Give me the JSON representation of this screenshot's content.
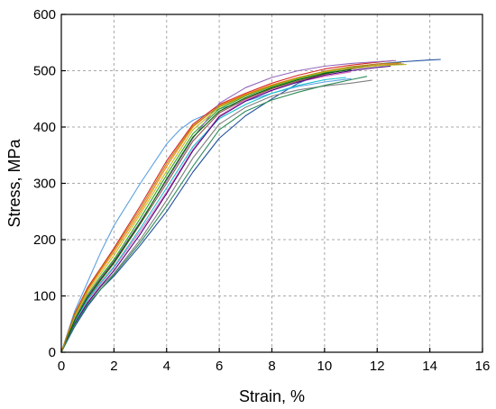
{
  "chart_data": {
    "type": "line",
    "title": "",
    "xlabel": "Strain, %",
    "ylabel": "Stress, MPa",
    "xlim": [
      0,
      16
    ],
    "ylim": [
      0,
      600
    ],
    "xticks": [
      0,
      2,
      4,
      6,
      8,
      10,
      12,
      14,
      16
    ],
    "yticks": [
      0,
      100,
      200,
      300,
      400,
      500,
      600
    ],
    "x_tick_labels": [
      "0",
      "2",
      "4",
      "6",
      "8",
      "10",
      "12",
      "14",
      "16"
    ],
    "y_tick_labels": [
      "0",
      "100",
      "200",
      "300",
      "400",
      "500",
      "600"
    ],
    "grid": true,
    "legend": "none",
    "series": [
      {
        "color": "#1f4e9c",
        "points": [
          [
            0,
            0
          ],
          [
            0.5,
            45
          ],
          [
            1,
            82
          ],
          [
            1.5,
            112
          ],
          [
            2,
            135
          ],
          [
            3,
            190
          ],
          [
            4,
            250
          ],
          [
            5,
            320
          ],
          [
            6,
            380
          ],
          [
            7,
            420
          ],
          [
            8,
            450
          ],
          [
            9,
            478
          ],
          [
            10,
            496
          ],
          [
            11,
            506
          ],
          [
            12,
            512
          ],
          [
            13,
            516
          ],
          [
            14,
            519
          ],
          [
            14.4,
            520
          ]
        ]
      },
      {
        "color": "#5da0e0",
        "points": [
          [
            0,
            0
          ],
          [
            0.5,
            72
          ],
          [
            1,
            125
          ],
          [
            1.5,
            178
          ],
          [
            2,
            225
          ],
          [
            3,
            300
          ],
          [
            4,
            370
          ],
          [
            4.5,
            395
          ],
          [
            5,
            412
          ],
          [
            6,
            432
          ],
          [
            7,
            446
          ],
          [
            8,
            460
          ],
          [
            9,
            472
          ],
          [
            10,
            480
          ],
          [
            11,
            486
          ]
        ]
      },
      {
        "color": "#d62728",
        "points": [
          [
            0,
            0
          ],
          [
            0.5,
            68
          ],
          [
            1,
            115
          ],
          [
            1.5,
            150
          ],
          [
            2,
            185
          ],
          [
            3,
            260
          ],
          [
            4,
            340
          ],
          [
            5,
            405
          ],
          [
            6,
            440
          ],
          [
            7,
            460
          ],
          [
            8,
            478
          ],
          [
            9,
            492
          ],
          [
            10,
            503
          ],
          [
            11,
            510
          ],
          [
            12,
            515
          ],
          [
            12.6,
            518
          ]
        ]
      },
      {
        "color": "#ff7f0e",
        "points": [
          [
            0,
            0
          ],
          [
            0.5,
            65
          ],
          [
            1,
            110
          ],
          [
            1.5,
            145
          ],
          [
            2,
            178
          ],
          [
            3,
            250
          ],
          [
            4,
            330
          ],
          [
            5,
            400
          ],
          [
            6,
            438
          ],
          [
            7,
            458
          ],
          [
            8,
            475
          ],
          [
            9,
            488
          ],
          [
            10,
            498
          ],
          [
            11,
            505
          ],
          [
            12,
            510
          ],
          [
            12.8,
            512
          ]
        ]
      },
      {
        "color": "#2ca02c",
        "points": [
          [
            0,
            0
          ],
          [
            0.5,
            60
          ],
          [
            1,
            102
          ],
          [
            1.5,
            135
          ],
          [
            2,
            165
          ],
          [
            3,
            238
          ],
          [
            4,
            315
          ],
          [
            5,
            388
          ],
          [
            6,
            432
          ],
          [
            7,
            455
          ],
          [
            8,
            472
          ],
          [
            9,
            486
          ],
          [
            10,
            497
          ],
          [
            11,
            505
          ],
          [
            12,
            509
          ],
          [
            12.4,
            510
          ]
        ]
      },
      {
        "color": "#9467bd",
        "points": [
          [
            0,
            0
          ],
          [
            0.5,
            58
          ],
          [
            1,
            100
          ],
          [
            1.5,
            132
          ],
          [
            2,
            162
          ],
          [
            3,
            232
          ],
          [
            4,
            305
          ],
          [
            5,
            380
          ],
          [
            6,
            442
          ],
          [
            7,
            470
          ],
          [
            8,
            488
          ],
          [
            9,
            500
          ],
          [
            10,
            508
          ],
          [
            11,
            513
          ],
          [
            12,
            516
          ],
          [
            12.7,
            518
          ]
        ]
      },
      {
        "color": "#8c564b",
        "points": [
          [
            0,
            0
          ],
          [
            0.5,
            55
          ],
          [
            1,
            96
          ],
          [
            1.5,
            128
          ],
          [
            2,
            158
          ],
          [
            3,
            228
          ],
          [
            4,
            300
          ],
          [
            5,
            375
          ],
          [
            6,
            425
          ],
          [
            7,
            450
          ],
          [
            8,
            468
          ],
          [
            9,
            482
          ],
          [
            10,
            494
          ],
          [
            11,
            503
          ],
          [
            12,
            509
          ],
          [
            13,
            512
          ]
        ]
      },
      {
        "color": "#e377c2",
        "points": [
          [
            0,
            0
          ],
          [
            0.5,
            52
          ],
          [
            1,
            92
          ],
          [
            1.5,
            122
          ],
          [
            2,
            150
          ],
          [
            3,
            215
          ],
          [
            4,
            285
          ],
          [
            5,
            360
          ],
          [
            6,
            420
          ],
          [
            7,
            448
          ],
          [
            8,
            466
          ],
          [
            9,
            480
          ],
          [
            10,
            490
          ],
          [
            11,
            498
          ]
        ]
      },
      {
        "color": "#7f7f7f",
        "points": [
          [
            0,
            0
          ],
          [
            0.5,
            50
          ],
          [
            1,
            88
          ],
          [
            1.5,
            116
          ],
          [
            2,
            140
          ],
          [
            3,
            200
          ],
          [
            4,
            270
          ],
          [
            5,
            345
          ],
          [
            6,
            405
          ],
          [
            7,
            435
          ],
          [
            8,
            455
          ],
          [
            9,
            466
          ],
          [
            10,
            473
          ],
          [
            11,
            478
          ],
          [
            11.8,
            483
          ]
        ]
      },
      {
        "color": "#bcbd22",
        "points": [
          [
            0,
            0
          ],
          [
            0.5,
            62
          ],
          [
            1,
            106
          ],
          [
            1.5,
            140
          ],
          [
            2,
            172
          ],
          [
            3,
            245
          ],
          [
            4,
            322
          ],
          [
            5,
            395
          ],
          [
            6,
            435
          ],
          [
            7,
            456
          ],
          [
            8,
            473
          ],
          [
            9,
            487
          ],
          [
            10,
            498
          ],
          [
            11,
            505
          ],
          [
            12,
            509
          ],
          [
            13.1,
            511
          ]
        ]
      },
      {
        "color": "#17becf",
        "points": [
          [
            0,
            0
          ],
          [
            0.5,
            54
          ],
          [
            1,
            94
          ],
          [
            1.5,
            124
          ],
          [
            2,
            152
          ],
          [
            3,
            220
          ],
          [
            4,
            292
          ],
          [
            5,
            365
          ],
          [
            6,
            415
          ],
          [
            7,
            440
          ],
          [
            8,
            460
          ],
          [
            9,
            474
          ],
          [
            10,
            484
          ],
          [
            10.8,
            488
          ]
        ]
      },
      {
        "color": "#006400",
        "points": [
          [
            0,
            0
          ],
          [
            0.5,
            56
          ],
          [
            1,
            98
          ],
          [
            1.5,
            130
          ],
          [
            2,
            160
          ],
          [
            3,
            230
          ],
          [
            4,
            308
          ],
          [
            5,
            382
          ],
          [
            6,
            428
          ],
          [
            7,
            452
          ],
          [
            8,
            470
          ],
          [
            9,
            484
          ],
          [
            10,
            495
          ],
          [
            11,
            502
          ]
        ]
      },
      {
        "color": "#4b0082",
        "points": [
          [
            0,
            0
          ],
          [
            0.5,
            50
          ],
          [
            1,
            88
          ],
          [
            1.5,
            118
          ],
          [
            2,
            145
          ],
          [
            3,
            210
          ],
          [
            4,
            282
          ],
          [
            5,
            358
          ],
          [
            6,
            418
          ],
          [
            7,
            446
          ],
          [
            8,
            465
          ],
          [
            9,
            480
          ],
          [
            10,
            492
          ],
          [
            11,
            500
          ],
          [
            12,
            506
          ],
          [
            12.5,
            508
          ]
        ]
      },
      {
        "color": "#2e8b57",
        "points": [
          [
            0,
            0
          ],
          [
            0.5,
            48
          ],
          [
            1,
            85
          ],
          [
            1.5,
            112
          ],
          [
            2,
            138
          ],
          [
            3,
            195
          ],
          [
            4,
            260
          ],
          [
            5,
            330
          ],
          [
            6,
            395
          ],
          [
            7,
            428
          ],
          [
            8,
            448
          ],
          [
            9,
            462
          ],
          [
            10,
            474
          ],
          [
            11,
            484
          ],
          [
            11.6,
            490
          ]
        ]
      },
      {
        "color": "#b8860b",
        "points": [
          [
            0,
            0
          ],
          [
            0.5,
            66
          ],
          [
            1,
            112
          ],
          [
            1.5,
            148
          ],
          [
            2,
            182
          ],
          [
            3,
            255
          ],
          [
            4,
            335
          ],
          [
            5,
            402
          ],
          [
            6,
            437
          ],
          [
            7,
            457
          ],
          [
            8,
            474
          ],
          [
            9,
            488
          ],
          [
            10,
            499
          ],
          [
            11,
            507
          ],
          [
            12,
            512
          ],
          [
            12.9,
            514
          ]
        ]
      }
    ]
  }
}
